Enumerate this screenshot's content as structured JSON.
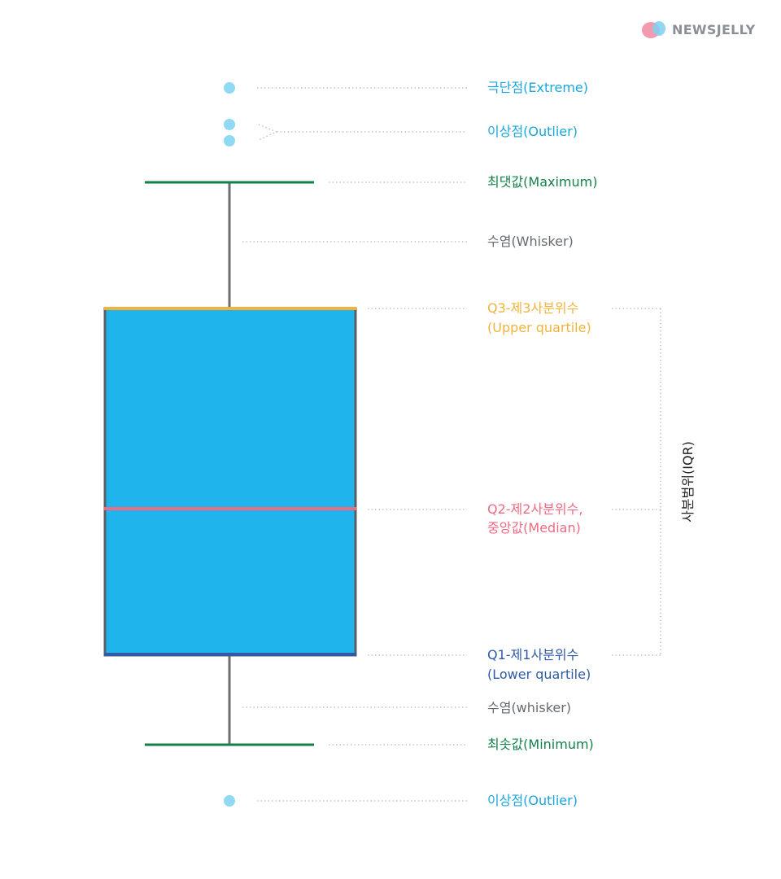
{
  "brand": {
    "name": "NEWSJELLY",
    "text_color": "#8b9097",
    "icon_colors": [
      "#f49ab0",
      "#7fd0f0"
    ]
  },
  "colors": {
    "box_fill": "#1fb5ec",
    "box_edge": "#5a6066",
    "whisker": "#6b6f73",
    "minmax": "#14804a",
    "q3": "#f2b33d",
    "median": "#ef6b82",
    "q1": "#2f5aa8",
    "outlier": "#8fdaf2",
    "leader": "#b4b8bc",
    "label_gray": "#666a6e",
    "label_blue": "#1aa6db"
  },
  "labels": {
    "extreme": "극단점(Extreme)",
    "outlier_top": "이상점(Outlier)",
    "maximum": "최댓값(Maximum)",
    "whisker_top": "수염(Whisker)",
    "q3_line1": "Q3-제3사분위수",
    "q3_line2": "(Upper quartile)",
    "q2_line1": "Q2-제2사분위수,",
    "q2_line2": "중앙값(Median)",
    "q1_line1": "Q1-제1사분위수",
    "q1_line2": "(Lower quartile)",
    "whisker_bottom": "수염(whisker)",
    "minimum": "최솟값(Minimum)",
    "outlier_bottom": "이상점(Outlier)",
    "iqr": "사분범위(IQR)"
  }
}
